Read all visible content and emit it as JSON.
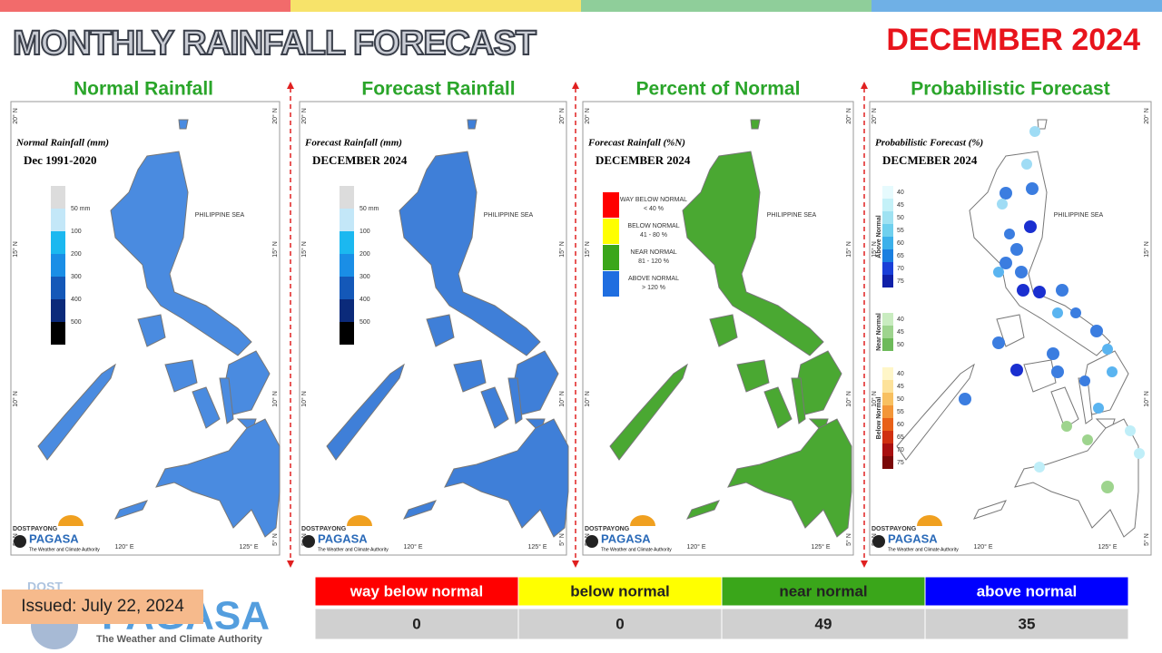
{
  "header": {
    "title": "MONTHLY RAINFALL FORECAST",
    "period": "DECEMBER 2024"
  },
  "map_labels": {
    "sea": "PHILIPPINE SEA",
    "lat": [
      "20° N",
      "15° N",
      "10° N",
      "5° N"
    ],
    "lon": [
      "120° E",
      "125° E"
    ],
    "logo_dost": "DOST",
    "logo_payong": "PAYONG",
    "logo_pagasa": "PAGASA",
    "logo_tagline": "The Weather and Climate Authority"
  },
  "panels": [
    {
      "title": "Normal Rainfall",
      "map_title": "Normal Rainfall (mm)",
      "map_subtitle": "Dec 1991-2020",
      "legend": [
        "50 mm",
        "100",
        "200",
        "300",
        "400",
        "500"
      ]
    },
    {
      "title": "Forecast Rainfall",
      "map_title": "Forecast Rainfall (mm)",
      "map_subtitle": "DECEMBER 2024",
      "legend": [
        "50 mm",
        "100",
        "200",
        "300",
        "400",
        "500"
      ]
    },
    {
      "title": "Percent of Normal",
      "map_title": "Forecast Rainfall (%N)",
      "map_subtitle": "DECEMBER 2024",
      "legend": [
        {
          "label": "WAY BELOW NORMAL",
          "range": "< 40 %"
        },
        {
          "label": "BELOW NORMAL",
          "range": "41 - 80 %"
        },
        {
          "label": "NEAR NORMAL",
          "range": "81 - 120 %"
        },
        {
          "label": "ABOVE NORMAL",
          "range": "> 120 %"
        }
      ]
    },
    {
      "title": "Probabilistic Forecast",
      "map_title": "Probabilistic Forecast (%)",
      "map_subtitle": "DECMEBER 2024",
      "legend": [
        {
          "name": "Above Normal",
          "levels": [
            "40",
            "45",
            "50",
            "55",
            "60",
            "65",
            "70",
            "75"
          ]
        },
        {
          "name": "Near Normal",
          "levels": [
            "40",
            "45",
            "50"
          ]
        },
        {
          "name": "Below Normal",
          "levels": [
            "40",
            "45",
            "50",
            "55",
            "60",
            "65",
            "70",
            "75"
          ]
        }
      ]
    }
  ],
  "table": {
    "headers": [
      "way below normal",
      "below normal",
      "near normal",
      "above normal"
    ],
    "counts": [
      0,
      0,
      49,
      35
    ]
  },
  "issued": "Issued: July 22, 2024",
  "footer_logo": {
    "dost": "DOST",
    "name": "PAGASA",
    "tagline": "The Weather and Climate Authority"
  }
}
